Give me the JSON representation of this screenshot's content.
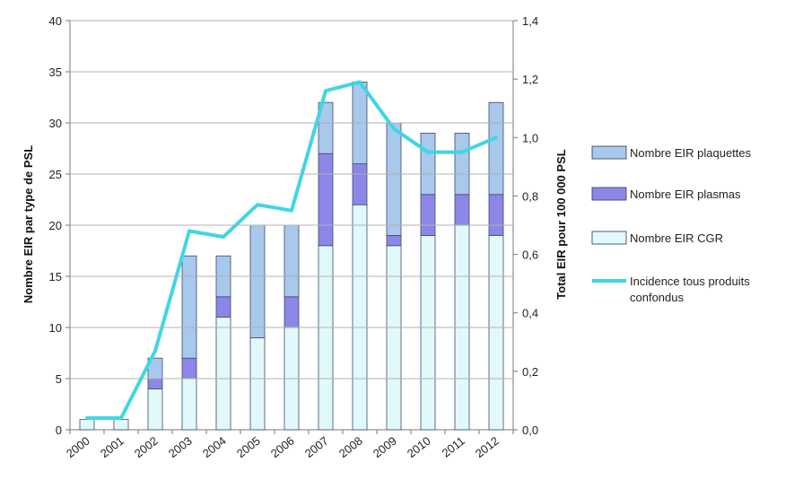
{
  "chart_data": {
    "type": "bar",
    "stacked": true,
    "categories": [
      "2000",
      "2001",
      "2002",
      "2003",
      "2004",
      "2005",
      "2006",
      "2007",
      "2008",
      "2009",
      "2010",
      "2011",
      "2012"
    ],
    "series": [
      {
        "name": "Nombre EIR CGR",
        "color": "#e2f9fb",
        "values": [
          1,
          1,
          4,
          5,
          11,
          9,
          10,
          18,
          22,
          18,
          19,
          20,
          19
        ]
      },
      {
        "name": "Nombre EIR plasmas",
        "color": "#8c87e6",
        "values": [
          0,
          0,
          1,
          2,
          2,
          0,
          3,
          9,
          4,
          1,
          4,
          3,
          4
        ]
      },
      {
        "name": "Nombre EIR plaquettes",
        "color": "#a8c8ec",
        "values": [
          0,
          0,
          2,
          10,
          4,
          11,
          7,
          5,
          8,
          11,
          6,
          6,
          9
        ]
      }
    ],
    "line": {
      "name": "Incidence tous produits confondus",
      "color": "#3fd6e3",
      "values": [
        0.04,
        0.04,
        0.27,
        0.68,
        0.66,
        0.77,
        0.75,
        1.16,
        1.19,
        1.03,
        0.95,
        0.95,
        1.0
      ]
    },
    "ylabel": "Nombre EIR par type de PSL",
    "y2label": "Total EIR pour 100 000 PSL",
    "ylim": [
      0,
      40
    ],
    "y2lim": [
      0,
      1.4
    ],
    "yticks": [
      "0",
      "5",
      "10",
      "15",
      "20",
      "25",
      "30",
      "35",
      "40"
    ],
    "y2ticks": [
      "0,0",
      "0,2",
      "0,4",
      "0,6",
      "0,8",
      "1,0",
      "1,2",
      "1,4"
    ],
    "legend_position": "right",
    "legend": [
      {
        "label": "Nombre EIR plaquettes",
        "kind": "box",
        "color": "#a8c8ec"
      },
      {
        "label": "Nombre EIR plasmas",
        "kind": "box",
        "color": "#8c87e6"
      },
      {
        "label": "Nombre EIR CGR",
        "kind": "box",
        "color": "#e2f9fb"
      },
      {
        "label": "Incidence tous produits confondus",
        "kind": "line",
        "color": "#3fd6e3"
      }
    ]
  }
}
